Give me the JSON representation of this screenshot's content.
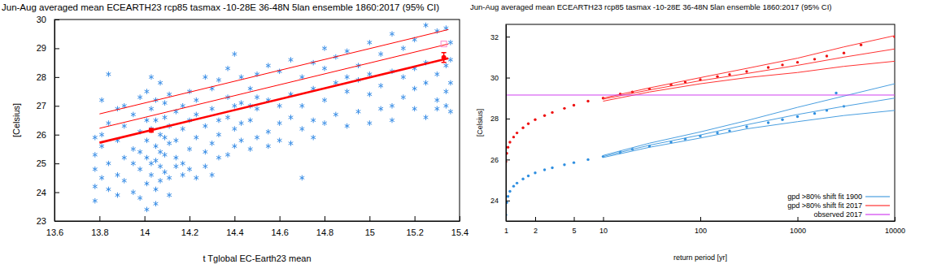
{
  "chart_data": [
    {
      "type": "scatter",
      "title": "Jun-Aug averaged mean ECEARTH23 rcp85 tasmax -10-28E 36-48N 5lan ensemble 1860:2017 (95% CI)",
      "x_label": "t Tglobal EC-Earth23 mean",
      "y_label": "[Celsius]",
      "xlim": [
        13.6,
        15.4
      ],
      "xticks": [
        13.6,
        13.8,
        14,
        14.2,
        14.4,
        14.6,
        14.8,
        15,
        15.2,
        15.4
      ],
      "ylim": [
        23,
        30
      ],
      "yticks": [
        23,
        24,
        25,
        26,
        27,
        28,
        29,
        30
      ],
      "series": [
        {
          "type": "scatter",
          "marker": "star",
          "color": "#3a8ee6",
          "x": [
            13.78,
            13.78,
            13.78,
            13.78,
            13.78,
            13.81,
            13.81,
            13.81,
            13.81,
            13.84,
            13.84,
            13.84,
            13.84,
            13.88,
            13.88,
            13.88,
            13.88,
            13.91,
            13.91,
            13.91,
            13.91,
            13.95,
            13.95,
            13.95,
            13.95,
            13.98,
            13.98,
            13.98,
            13.98,
            13.98,
            14.01,
            14.01,
            14.01,
            14.01,
            14.01,
            14.01,
            14.03,
            14.03,
            14.03,
            14.03,
            14.03,
            14.05,
            14.05,
            14.05,
            14.05,
            14.05,
            14.05,
            14.07,
            14.07,
            14.07,
            14.07,
            14.07,
            14.09,
            14.09,
            14.09,
            14.09,
            14.09,
            14.11,
            14.11,
            14.11,
            14.11,
            14.11,
            14.14,
            14.14,
            14.14,
            14.14,
            14.17,
            14.17,
            14.17,
            14.17,
            14.2,
            14.2,
            14.2,
            14.2,
            14.23,
            14.23,
            14.23,
            14.23,
            14.27,
            14.27,
            14.27,
            14.27,
            14.3,
            14.3,
            14.3,
            14.3,
            14.33,
            14.33,
            14.33,
            14.33,
            14.37,
            14.37,
            14.37,
            14.37,
            14.4,
            14.4,
            14.4,
            14.4,
            14.43,
            14.43,
            14.43,
            14.43,
            14.47,
            14.47,
            14.47,
            14.47,
            14.5,
            14.5,
            14.5,
            14.5,
            14.55,
            14.55,
            14.55,
            14.55,
            14.6,
            14.6,
            14.6,
            14.6,
            14.65,
            14.65,
            14.65,
            14.65,
            14.7,
            14.7,
            14.7,
            14.7,
            14.75,
            14.75,
            14.75,
            14.75,
            14.8,
            14.8,
            14.8,
            14.8,
            14.85,
            14.85,
            14.85,
            14.9,
            14.9,
            14.9,
            14.9,
            14.95,
            14.95,
            14.95,
            15.0,
            15.0,
            15.0,
            15.0,
            15.05,
            15.05,
            15.05,
            15.1,
            15.1,
            15.1,
            15.1,
            15.15,
            15.15,
            15.15,
            15.2,
            15.2,
            15.2,
            15.2,
            15.25,
            15.25,
            15.25,
            15.25,
            15.3,
            15.3,
            15.3,
            15.3,
            15.34,
            15.34,
            15.34,
            15.34,
            15.36,
            15.36,
            15.36,
            15.36
          ],
          "values": [
            24.8,
            25.3,
            23.7,
            25.9,
            24.2,
            27.2,
            25.6,
            24.5,
            26.0,
            28.1,
            25.0,
            24.1,
            26.4,
            24.6,
            25.8,
            26.9,
            23.9,
            25.2,
            26.3,
            24.4,
            27.0,
            25.5,
            24.0,
            26.7,
            25.0,
            26.1,
            24.8,
            27.3,
            25.4,
            23.8,
            26.5,
            25.2,
            24.3,
            27.5,
            25.8,
            23.4,
            25.0,
            26.9,
            24.6,
            26.2,
            28.0,
            25.6,
            24.1,
            26.5,
            27.2,
            25.1,
            23.6,
            26.0,
            24.9,
            25.4,
            27.8,
            24.4,
            25.3,
            26.6,
            24.7,
            25.9,
            27.1,
            24.5,
            25.7,
            26.3,
            23.9,
            27.4,
            25.8,
            26.8,
            24.9,
            25.2,
            26.2,
            25.0,
            27.0,
            24.6,
            26.5,
            25.5,
            27.5,
            24.8,
            25.9,
            27.2,
            24.5,
            26.7,
            26.3,
            25.4,
            28.0,
            24.9,
            26.9,
            25.7,
            27.6,
            24.6,
            26.0,
            27.9,
            25.2,
            26.5,
            26.6,
            25.3,
            27.3,
            28.3,
            26.2,
            27.0,
            25.6,
            28.8,
            27.1,
            25.8,
            26.4,
            28.0,
            26.5,
            27.6,
            25.5,
            27.0,
            26.9,
            25.9,
            28.1,
            27.3,
            27.2,
            26.1,
            28.4,
            25.6,
            27.0,
            26.4,
            28.2,
            25.8,
            27.4,
            26.6,
            28.6,
            25.7,
            27.0,
            28.0,
            26.2,
            24.5,
            27.6,
            26.5,
            28.5,
            25.9,
            27.2,
            28.3,
            26.4,
            29.0,
            27.8,
            26.7,
            28.7,
            27.5,
            26.3,
            28.9,
            28.0,
            27.9,
            26.8,
            28.4,
            28.1,
            26.4,
            29.2,
            27.4,
            27.7,
            26.9,
            28.8,
            28.2,
            27.0,
            29.5,
            26.5,
            28.0,
            27.3,
            29.0,
            28.3,
            26.9,
            29.3,
            27.6,
            27.8,
            26.6,
            29.8,
            28.5,
            28.1,
            27.2,
            29.6,
            26.9,
            28.4,
            27.5,
            29.7,
            27.0,
            27.8,
            29.2,
            26.8,
            28.6
          ]
        },
        {
          "type": "line",
          "line_style": "thick",
          "color": "#ff0000",
          "x": [
            13.8,
            15.35
          ],
          "values": [
            25.72,
            28.65
          ]
        },
        {
          "type": "line",
          "line_style": "thin",
          "color": "#ff0000",
          "x": [
            13.8,
            15.35
          ],
          "values": [
            26.22,
            29.15
          ]
        },
        {
          "type": "line",
          "line_style": "thin",
          "color": "#ff0000",
          "x": [
            13.8,
            15.35
          ],
          "values": [
            26.72,
            29.65
          ]
        },
        {
          "type": "scatter",
          "marker": "dot",
          "color": "#ff0000",
          "x": [
            14.03,
            15.33
          ],
          "values": [
            26.15,
            28.68
          ],
          "error": [
            0.06,
            0.17
          ]
        },
        {
          "type": "scatter",
          "marker": "square",
          "color": "#ff88cc",
          "x": [
            15.33
          ],
          "values": [
            29.15
          ]
        }
      ]
    },
    {
      "type": "line",
      "title": "Jun-Aug averaged mean ECEARTH23 rcp85 tasmax -10-28E 36-48N 5lan ensemble 1860:2017 (95% CI)",
      "x_label": "return period [yr]",
      "y_label": "[Celsius]",
      "log": "x",
      "xlim": [
        1,
        10000
      ],
      "xticks": [
        1,
        2,
        5,
        10,
        100,
        1000,
        10000
      ],
      "ylim": [
        23,
        32.6
      ],
      "yticks": [
        24,
        26,
        28,
        30,
        32
      ],
      "legend": "lower right",
      "series": [
        {
          "type": "scatter",
          "marker": "dot",
          "color": "#ee1111",
          "x": [
            1,
            1.02,
            1.05,
            1.1,
            1.2,
            1.3,
            1.5,
            1.7,
            2,
            2.5,
            3,
            4,
            5,
            7,
            10,
            15,
            20,
            30,
            50,
            70,
            100,
            150,
            200,
            300,
            500,
            700,
            1000,
            1500,
            2000,
            3000,
            4500,
            10000
          ],
          "values": [
            25.9,
            26.3,
            26.6,
            26.85,
            27.1,
            27.3,
            27.55,
            27.75,
            27.95,
            28.15,
            28.3,
            28.5,
            28.65,
            28.85,
            29.0,
            29.2,
            29.3,
            29.45,
            29.65,
            29.78,
            29.9,
            30.05,
            30.15,
            30.3,
            30.5,
            30.62,
            30.75,
            30.9,
            31.05,
            31.2,
            31.6,
            32.0
          ]
        },
        {
          "type": "scatter",
          "marker": "dot",
          "color": "#2f8fe0",
          "x": [
            1,
            1.02,
            1.05,
            1.1,
            1.2,
            1.3,
            1.5,
            1.7,
            2,
            2.5,
            3,
            4,
            5,
            7,
            10,
            15,
            20,
            30,
            50,
            70,
            100,
            150,
            200,
            300,
            500,
            700,
            1000,
            1500,
            2000,
            2500,
            3000
          ],
          "values": [
            23.3,
            23.9,
            24.2,
            24.45,
            24.7,
            24.85,
            25.05,
            25.2,
            25.35,
            25.5,
            25.6,
            25.75,
            25.85,
            26.0,
            26.15,
            26.35,
            26.5,
            26.65,
            26.85,
            27.0,
            27.15,
            27.3,
            27.4,
            27.6,
            27.8,
            27.95,
            28.1,
            28.25,
            28.4,
            29.25,
            28.6
          ]
        },
        {
          "name": "gpd >80% shift fit 1900",
          "type": "line",
          "color": "#4a9fe0",
          "x": [
            10,
            30,
            100,
            300,
            1000,
            3000,
            10000
          ],
          "values": [
            26.15,
            26.7,
            27.2,
            27.7,
            28.2,
            28.6,
            29.0
          ]
        },
        {
          "type": "line",
          "color": "#4a9fe0",
          "x": [
            10,
            30,
            100,
            300,
            1000,
            3000,
            10000
          ],
          "values": [
            26.2,
            26.8,
            27.35,
            27.9,
            28.55,
            29.1,
            29.7
          ]
        },
        {
          "type": "line",
          "color": "#4a9fe0",
          "x": [
            10,
            30,
            100,
            300,
            1000,
            3000,
            10000
          ],
          "values": [
            26.1,
            26.6,
            27.05,
            27.5,
            27.85,
            28.15,
            28.4
          ]
        },
        {
          "name": "gpd >80% shift fit 2017",
          "type": "line",
          "color": "#ff3333",
          "x": [
            10,
            30,
            100,
            300,
            1000,
            3000,
            10000
          ],
          "values": [
            28.95,
            29.4,
            29.85,
            30.2,
            30.6,
            31.0,
            31.4
          ]
        },
        {
          "type": "line",
          "color": "#ff3333",
          "x": [
            10,
            30,
            100,
            300,
            1000,
            3000,
            10000
          ],
          "values": [
            29.0,
            29.5,
            30.0,
            30.45,
            30.95,
            31.5,
            32.05
          ]
        },
        {
          "type": "line",
          "color": "#ff3333",
          "x": [
            10,
            30,
            100,
            300,
            1000,
            3000,
            10000
          ],
          "values": [
            28.85,
            29.3,
            29.7,
            30.0,
            30.25,
            30.55,
            30.8
          ]
        },
        {
          "name": "observed 2017",
          "type": "line",
          "color": "#d040f0",
          "x": [
            1,
            10000
          ],
          "values": [
            29.15,
            29.15
          ]
        }
      ]
    }
  ]
}
